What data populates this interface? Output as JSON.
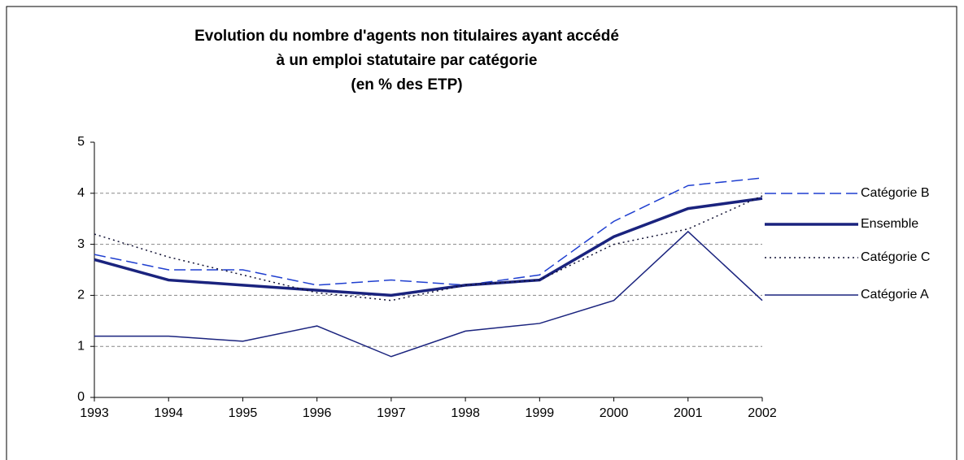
{
  "chart_data": {
    "type": "line",
    "title": [
      "Evolution du nombre d'agents non titulaires ayant accédé",
      "à un emploi statutaire par catégorie",
      "(en % des ETP)"
    ],
    "categories": [
      "1993",
      "1994",
      "1995",
      "1996",
      "1997",
      "1998",
      "1999",
      "2000",
      "2001",
      "2002"
    ],
    "series": [
      {
        "name": "Catégorie B",
        "color": "#1f3fd0",
        "line_style": "dashed",
        "width": 1.5,
        "values": [
          2.8,
          2.5,
          2.5,
          2.2,
          2.3,
          2.2,
          2.4,
          3.45,
          4.15,
          4.3
        ]
      },
      {
        "name": "Ensemble",
        "color": "#1a237e",
        "line_style": "solid",
        "width": 3.5,
        "values": [
          2.7,
          2.3,
          2.2,
          2.1,
          2.0,
          2.2,
          2.3,
          3.15,
          3.7,
          3.9
        ]
      },
      {
        "name": "Catégorie C",
        "color": "#111133",
        "line_style": "dotted",
        "width": 1.5,
        "values": [
          3.2,
          2.75,
          2.4,
          2.05,
          1.9,
          2.2,
          2.3,
          3.0,
          3.3,
          3.95
        ]
      },
      {
        "name": "Catégorie A",
        "color": "#1a237e",
        "line_style": "solid",
        "width": 1.5,
        "values": [
          1.2,
          1.2,
          1.1,
          1.4,
          0.8,
          1.3,
          1.45,
          1.9,
          3.25,
          1.9
        ]
      }
    ],
    "ylim": [
      0,
      5
    ],
    "yticks": [
      0,
      1,
      2,
      3,
      4,
      5
    ],
    "grid": true,
    "legend": "right"
  }
}
